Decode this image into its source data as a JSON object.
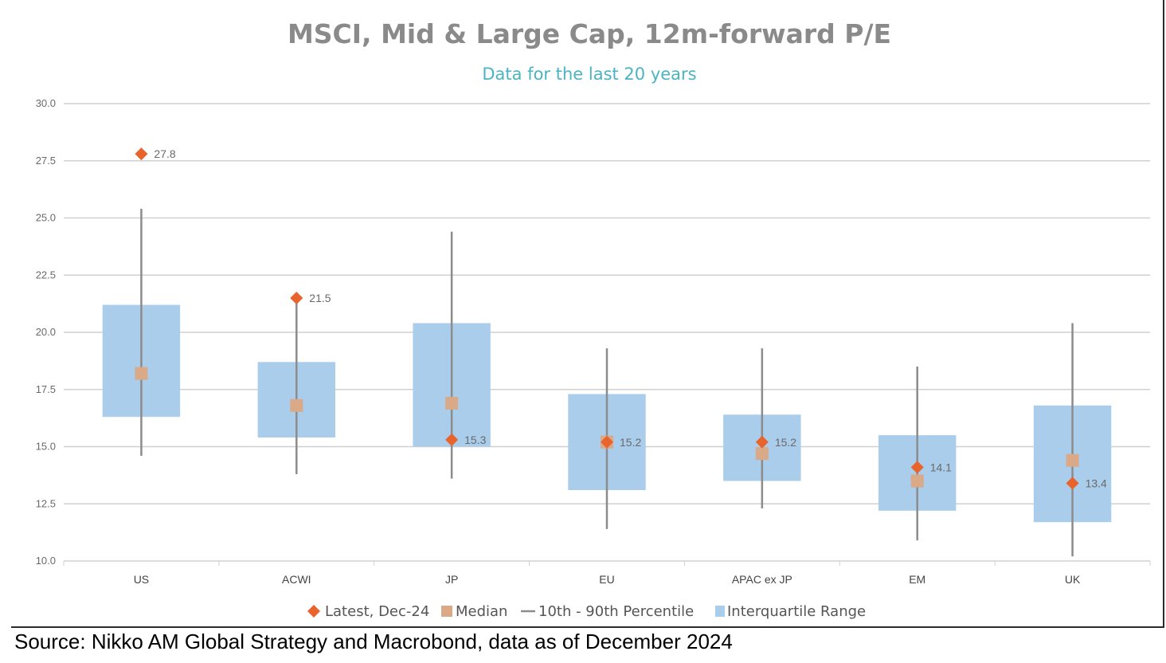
{
  "colors": {
    "latest": "#e8642c",
    "median": "#d9a988",
    "whisker": "#8c8c8c",
    "iqr": "#a9cdeb",
    "grid": "#d0d0d0",
    "title": "#8a8a8a",
    "subtitle": "#4bb3c3"
  },
  "source": "Source: Nikko AM Global Strategy and Macrobond, data as of December 2024",
  "chart_data": {
    "type": "box",
    "title": "MSCI, Mid & Large Cap, 12m-forward P/E",
    "subtitle": "Data for the last 20 years",
    "ylim": [
      10.0,
      30.0
    ],
    "yticks": [
      "10.0",
      "12.5",
      "15.0",
      "17.5",
      "20.0",
      "22.5",
      "25.0",
      "27.5",
      "30.0"
    ],
    "grid": true,
    "legend_position": "bottom",
    "categories": [
      "US",
      "ACWI",
      "JP",
      "EU",
      "APAC ex JP",
      "EM",
      "UK"
    ],
    "series": [
      {
        "name": "Latest, Dec-24",
        "marker": "diamond",
        "values": [
          27.8,
          21.5,
          15.3,
          15.2,
          15.2,
          14.1,
          13.4
        ]
      },
      {
        "name": "Median",
        "marker": "square",
        "values": [
          18.2,
          16.8,
          16.9,
          15.2,
          14.7,
          13.5,
          14.4
        ]
      },
      {
        "name": "10th - 90th Percentile",
        "marker": "line",
        "low": [
          14.6,
          13.8,
          13.6,
          11.4,
          12.3,
          10.9,
          10.2
        ],
        "high": [
          25.4,
          21.3,
          24.4,
          19.3,
          19.3,
          18.5,
          20.4
        ]
      },
      {
        "name": "Interquartile Range",
        "marker": "box",
        "low": [
          16.3,
          15.4,
          15.0,
          13.1,
          13.5,
          12.2,
          11.7
        ],
        "high": [
          21.2,
          18.7,
          20.4,
          17.3,
          16.4,
          15.5,
          16.8
        ]
      }
    ],
    "data_labels": [
      "27.8",
      "21.5",
      "15.3",
      "15.2",
      "15.2",
      "14.1",
      "13.4"
    ]
  }
}
